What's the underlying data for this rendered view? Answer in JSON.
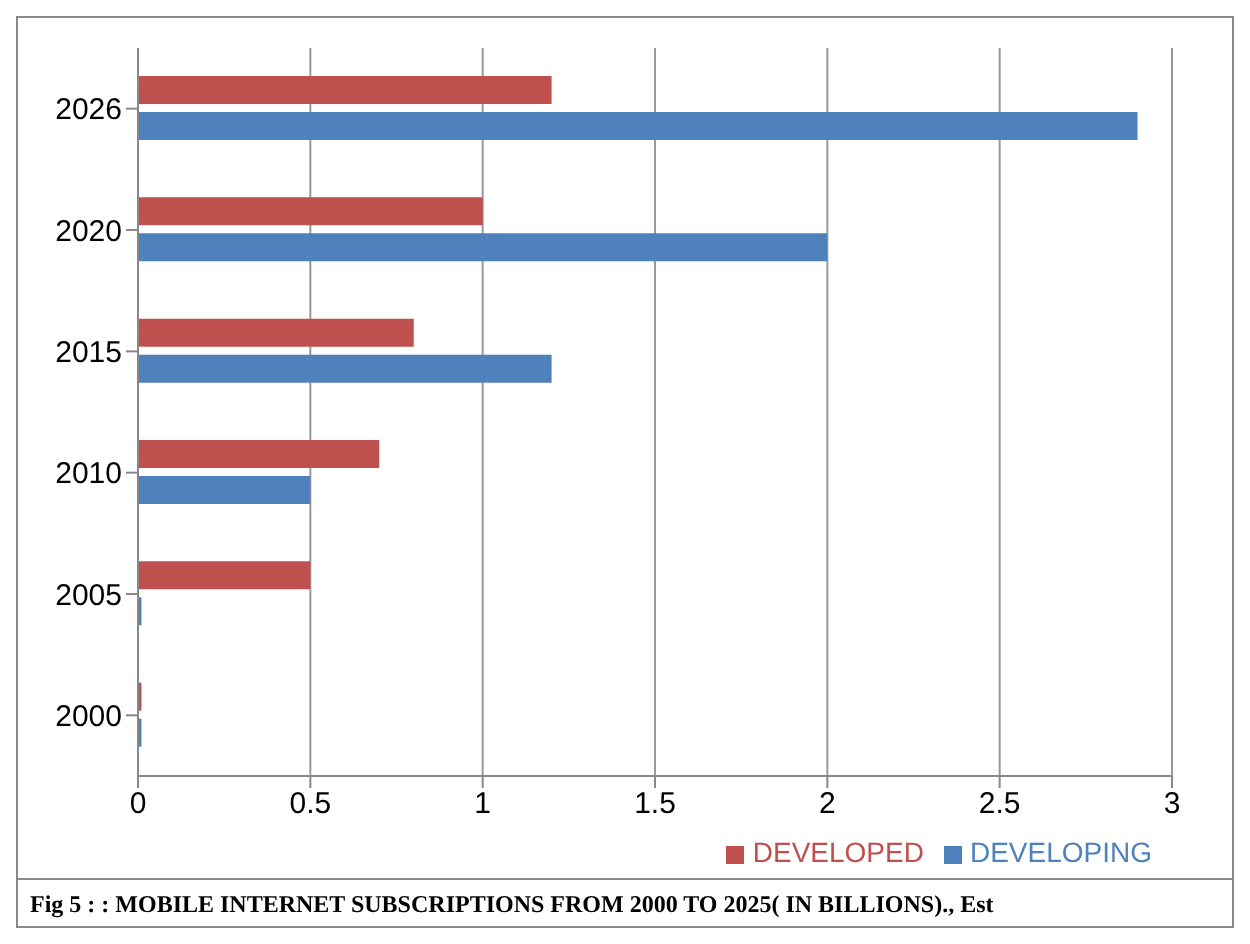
{
  "chart_data": {
    "type": "bar",
    "orientation": "horizontal",
    "categories": [
      "2026",
      "2020",
      "2015",
      "2010",
      "2005",
      "2000"
    ],
    "series": [
      {
        "name": "DEVELOPED",
        "color": "#c0504d",
        "values": [
          1.2,
          1.0,
          0.8,
          0.7,
          0.5,
          0.01
        ]
      },
      {
        "name": "DEVELOPING",
        "color": "#4f81bd",
        "values": [
          2.9,
          2.0,
          1.2,
          0.5,
          0.01,
          0.01
        ]
      }
    ],
    "xlim": [
      0,
      3
    ],
    "xticks": [
      0,
      0.5,
      1,
      1.5,
      2,
      2.5,
      3
    ],
    "grid": "x",
    "legend": "bottom right",
    "annotations": [
      "Fig 5 : : MOBILE INTERNET  SUBSCRIPTIONS  FROM 2000 TO 2025( IN BILLIONS)., Est"
    ]
  }
}
